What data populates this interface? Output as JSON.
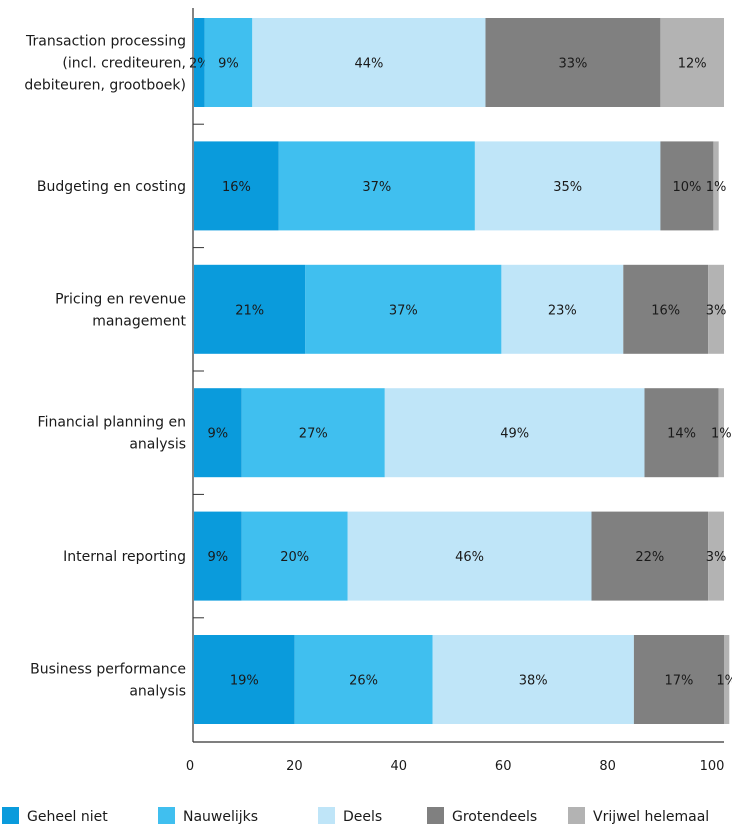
{
  "chart_data": {
    "type": "bar",
    "orientation": "horizontal",
    "stacked": true,
    "categories": [
      [
        "Transaction processing",
        "(incl. crediteuren,",
        "debiteuren, grootboek)"
      ],
      [
        "Budgeting en costing"
      ],
      [
        "Pricing en revenue",
        "management"
      ],
      [
        "Financial planning en",
        "analysis"
      ],
      [
        "Internal reporting"
      ],
      [
        "Business performance",
        "analysis"
      ]
    ],
    "series": [
      {
        "name": "Geheel niet",
        "color": "#0a9bdc",
        "values": [
          2,
          16,
          21,
          9,
          9,
          19
        ]
      },
      {
        "name": "Nauwelijks",
        "color": "#40bfef",
        "values": [
          9,
          37,
          37,
          27,
          20,
          26
        ]
      },
      {
        "name": "Deels",
        "color": "#bfe5f8",
        "values": [
          44,
          35,
          23,
          49,
          46,
          38
        ]
      },
      {
        "name": "Grotendeels",
        "color": "#808080",
        "values": [
          33,
          10,
          16,
          14,
          22,
          17
        ]
      },
      {
        "name": "Vrijwel helemaal",
        "color": "#b3b3b3",
        "values": [
          12,
          1,
          3,
          1,
          3,
          1
        ]
      }
    ],
    "x_ticks": [
      "0",
      "20",
      "40",
      "60",
      "80",
      "100"
    ],
    "xlim": [
      0,
      100
    ],
    "grid": false,
    "legend_position": "bottom"
  }
}
